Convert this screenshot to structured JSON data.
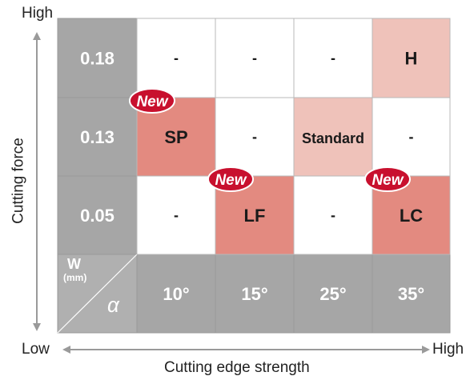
{
  "chart_data": {
    "type": "table",
    "y_axis": {
      "label": "Cutting force",
      "high": "High",
      "low": "Low"
    },
    "x_axis": {
      "label": "Cutting edge strength",
      "low": "Low",
      "high": "High"
    },
    "corner": {
      "w_label": "W",
      "w_unit": "(mm)",
      "alpha_label": "α"
    },
    "row_headers": [
      "0.18",
      "0.13",
      "0.05"
    ],
    "column_headers": [
      "10°",
      "15°",
      "25°",
      "35°"
    ],
    "cells": [
      [
        "-",
        "-",
        "-",
        "H"
      ],
      [
        "SP",
        "-",
        "Standard",
        "-"
      ],
      [
        "-",
        "LF",
        "-",
        "LC"
      ]
    ],
    "new_badge_text": "New",
    "new_badges": [
      {
        "row": 1,
        "col": 0
      },
      {
        "row": 2,
        "col": 1
      },
      {
        "row": 2,
        "col": 3
      }
    ],
    "highlight": [
      [
        "none",
        "none",
        "none",
        "light"
      ],
      [
        "dark",
        "none",
        "light",
        "none"
      ],
      [
        "none",
        "dark",
        "none",
        "dark"
      ]
    ],
    "colors": {
      "header_gray": "#a6a6a6",
      "corner_gray": "#b0b0b0",
      "light_pink": "#efc2ba",
      "dark_pink": "#e38a80",
      "badge_red": "#c8102e",
      "arrow_gray": "#9a9a9a"
    }
  }
}
